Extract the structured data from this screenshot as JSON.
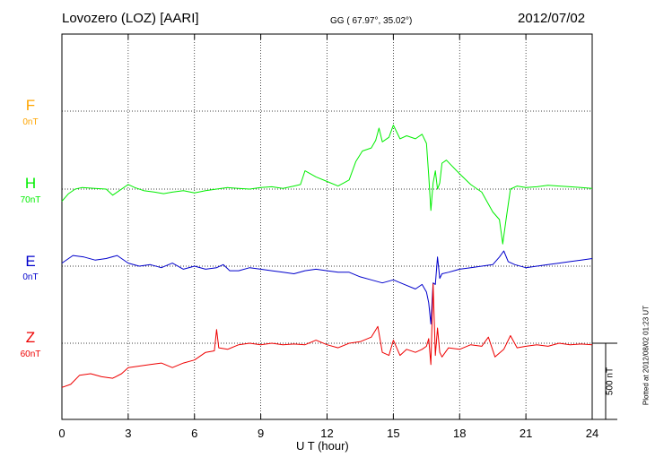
{
  "header": {
    "station": "Lovozero (LOZ)  [AARI]",
    "coords": "GG ( 67.97°,  35.02°)",
    "date": "2012/07/02"
  },
  "plotted_note": "Plotted at 2012/08/02 01:23 UT",
  "scale_label": "500 nT",
  "components": [
    {
      "id": "F",
      "label": "F",
      "baseline": "0nT",
      "color": "#ffa500"
    },
    {
      "id": "H",
      "label": "H",
      "baseline": "70nT",
      "color": "#00ee00"
    },
    {
      "id": "E",
      "label": "E",
      "baseline": "0nT",
      "color": "#0000cc"
    },
    {
      "id": "Z",
      "label": "Z",
      "baseline": "60nT",
      "color": "#ee0000"
    }
  ],
  "chart_data": {
    "type": "line",
    "xlabel": "U T (hour)",
    "xlim": [
      0,
      24
    ],
    "xticks": [
      0,
      3,
      6,
      9,
      12,
      15,
      18,
      21,
      24
    ],
    "grid": true,
    "scale_nT": 500,
    "series": [
      {
        "name": "H",
        "color": "#00ee00",
        "x": [
          0,
          0.3,
          0.6,
          0.9,
          1.5,
          2.0,
          2.3,
          2.6,
          3.0,
          3.3,
          3.7,
          4.2,
          4.6,
          5.0,
          5.5,
          6.0,
          6.5,
          7.0,
          7.5,
          8.0,
          8.5,
          9.0,
          9.5,
          10.0,
          10.5,
          10.8,
          11.0,
          11.5,
          12.0,
          12.5,
          13.0,
          13.3,
          13.6,
          14.0,
          14.2,
          14.35,
          14.5,
          14.8,
          15.0,
          15.3,
          15.6,
          16.0,
          16.3,
          16.5,
          16.6,
          16.7,
          16.8,
          16.9,
          17.0,
          17.1,
          17.2,
          17.4,
          17.6,
          18.0,
          18.5,
          19.0,
          19.5,
          19.8,
          19.95,
          20.1,
          20.3,
          20.6,
          21.0,
          21.5,
          22.0,
          22.5,
          23.0,
          23.5,
          24.0
        ],
        "y": [
          -80,
          -30,
          0,
          10,
          5,
          0,
          -40,
          -10,
          30,
          10,
          -10,
          -20,
          -30,
          -20,
          -10,
          -25,
          -10,
          0,
          10,
          5,
          0,
          10,
          15,
          5,
          20,
          30,
          120,
          80,
          50,
          20,
          60,
          180,
          250,
          270,
          320,
          400,
          310,
          340,
          420,
          330,
          350,
          330,
          360,
          300,
          90,
          -140,
          40,
          120,
          0,
          40,
          170,
          190,
          160,
          100,
          30,
          -20,
          -150,
          -200,
          -360,
          -200,
          0,
          20,
          10,
          15,
          25,
          20,
          15,
          10,
          5
        ]
      },
      {
        "name": "E",
        "color": "#0000cc",
        "x": [
          0,
          0.5,
          1.0,
          1.5,
          2.0,
          2.5,
          3.0,
          3.5,
          4.0,
          4.5,
          5.0,
          5.5,
          6.0,
          6.5,
          7.0,
          7.3,
          7.6,
          8.0,
          8.5,
          9.0,
          9.5,
          10.0,
          10.5,
          11.0,
          11.5,
          12.0,
          12.5,
          13.0,
          13.5,
          14.0,
          14.5,
          15.0,
          15.5,
          16.0,
          16.3,
          16.5,
          16.6,
          16.7,
          16.8,
          16.9,
          17.0,
          17.1,
          17.2,
          17.5,
          18.0,
          18.5,
          19.0,
          19.5,
          19.8,
          20.0,
          20.2,
          20.5,
          21.0,
          21.5,
          22.0,
          22.5,
          23.0,
          23.5,
          24.0
        ],
        "y": [
          20,
          70,
          60,
          40,
          50,
          70,
          20,
          0,
          10,
          -10,
          20,
          -20,
          0,
          -20,
          -10,
          10,
          -30,
          -30,
          -10,
          -20,
          -30,
          -40,
          -50,
          -30,
          -20,
          -30,
          -40,
          -40,
          -70,
          -90,
          -110,
          -90,
          -120,
          -150,
          -120,
          -170,
          -240,
          -380,
          -110,
          -120,
          60,
          -80,
          -50,
          -40,
          -20,
          -10,
          0,
          10,
          60,
          100,
          30,
          10,
          -10,
          0,
          10,
          20,
          30,
          40,
          50
        ]
      },
      {
        "name": "Z",
        "color": "#ee0000",
        "x": [
          0,
          0.4,
          0.8,
          1.3,
          1.8,
          2.3,
          2.7,
          3.0,
          3.5,
          4.0,
          4.5,
          5.0,
          5.5,
          6.0,
          6.5,
          6.9,
          7.0,
          7.1,
          7.5,
          8.0,
          8.5,
          9.0,
          9.5,
          10.0,
          10.5,
          11.0,
          11.5,
          12.0,
          12.5,
          13.0,
          13.5,
          14.0,
          14.3,
          14.5,
          14.8,
          15.0,
          15.3,
          15.6,
          16.0,
          16.3,
          16.5,
          16.6,
          16.7,
          16.8,
          16.9,
          17.0,
          17.1,
          17.2,
          17.5,
          18.0,
          18.5,
          19.0,
          19.3,
          19.6,
          20.0,
          20.3,
          20.6,
          21.0,
          21.5,
          22.0,
          22.5,
          23.0,
          23.5,
          24.0
        ],
        "y": [
          -290,
          -270,
          -210,
          -200,
          -220,
          -230,
          -200,
          -160,
          -150,
          -140,
          -130,
          -160,
          -130,
          -110,
          -60,
          -50,
          90,
          -30,
          -40,
          -10,
          0,
          -10,
          0,
          -10,
          -5,
          -10,
          20,
          -10,
          -30,
          0,
          10,
          40,
          110,
          -60,
          -80,
          20,
          -80,
          -40,
          -60,
          -40,
          -20,
          30,
          -140,
          390,
          -80,
          100,
          -60,
          -90,
          -30,
          -40,
          -10,
          -20,
          40,
          -90,
          -40,
          50,
          -30,
          -20,
          -10,
          -20,
          0,
          -10,
          -5,
          -10
        ]
      }
    ]
  }
}
